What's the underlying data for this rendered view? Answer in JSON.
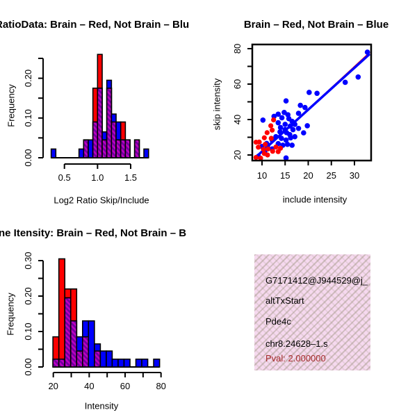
{
  "colors": {
    "red": "#FF0000",
    "blue": "#0000FF",
    "purple_dark": "#6E00A0",
    "purple_light": "#C000C0",
    "black": "#000000",
    "pval_red": "#A52A2A",
    "infobox_pink": "#F6D9EF"
  },
  "chart_data": [
    {
      "type": "histogram",
      "title": "RatioData: Brain – Red, Not Brain – Blu",
      "xlabel": "Log2 Ratio Skip/Include",
      "ylabel": "Frequency",
      "xlim": [
        0.3,
        1.84
      ],
      "ylim": [
        0,
        0.26
      ],
      "x_ticks": [
        {
          "v": 0.5,
          "label": "0.5"
        },
        {
          "v": 1.0,
          "label": "1.0"
        },
        {
          "v": 1.5,
          "label": "1.5"
        }
      ],
      "y_ticks": [
        {
          "v": 0.0,
          "label": "0.00"
        },
        {
          "v": 0.05,
          "label": ""
        },
        {
          "v": 0.1,
          "label": "0.10"
        },
        {
          "v": 0.15,
          "label": ""
        },
        {
          "v": 0.2,
          "label": "0.20"
        },
        {
          "v": 0.25,
          "label": ""
        }
      ],
      "bars": [
        {
          "x0": 0.3,
          "x1": 0.37,
          "red": 0,
          "blue": 0.022
        },
        {
          "x0": 0.72,
          "x1": 0.79,
          "red": 0,
          "blue": 0.022
        },
        {
          "x0": 0.79,
          "x1": 0.86,
          "red": 0.045,
          "blue": 0.045
        },
        {
          "x0": 0.86,
          "x1": 0.93,
          "red": 0,
          "blue": 0.045
        },
        {
          "x0": 0.93,
          "x1": 1.0,
          "red": 0.175,
          "blue": 0.09
        },
        {
          "x0": 1.0,
          "x1": 1.07,
          "red": 0.26,
          "blue": 0.175
        },
        {
          "x0": 1.07,
          "x1": 1.14,
          "red": 0.045,
          "blue": 0.065
        },
        {
          "x0": 1.14,
          "x1": 1.21,
          "red": 0.175,
          "blue": 0.195
        },
        {
          "x0": 1.21,
          "x1": 1.28,
          "red": 0.09,
          "blue": 0.11
        },
        {
          "x0": 1.28,
          "x1": 1.35,
          "red": 0.045,
          "blue": 0.09
        },
        {
          "x0": 1.35,
          "x1": 1.42,
          "red": 0.09,
          "blue": 0.045
        },
        {
          "x0": 1.42,
          "x1": 1.49,
          "red": 0.045,
          "blue": 0.045
        },
        {
          "x0": 1.56,
          "x1": 1.63,
          "red": 0.045,
          "blue": 0.045
        },
        {
          "x0": 1.7,
          "x1": 1.77,
          "red": 0,
          "blue": 0.022
        }
      ]
    },
    {
      "type": "scatter",
      "title": "Brain – Red, Not Brain – Blue",
      "xlabel": "include intensity",
      "ylabel": "skip intensity",
      "xlim": [
        8,
        34
      ],
      "ylim": [
        17,
        82
      ],
      "x_ticks": [
        {
          "v": 10,
          "label": "10"
        },
        {
          "v": 15,
          "label": "15"
        },
        {
          "v": 20,
          "label": "20"
        },
        {
          "v": 25,
          "label": "25"
        },
        {
          "v": 30,
          "label": "30"
        }
      ],
      "y_ticks": [
        {
          "v": 20,
          "label": "20"
        },
        {
          "v": 30,
          "label": ""
        },
        {
          "v": 40,
          "label": "40"
        },
        {
          "v": 50,
          "label": ""
        },
        {
          "v": 60,
          "label": "60"
        },
        {
          "v": 70,
          "label": ""
        },
        {
          "v": 80,
          "label": "80"
        }
      ],
      "blue_line": {
        "x1": 8.4,
        "y1": 18.2,
        "x2": 33.3,
        "y2": 77.0
      },
      "red_line": {
        "x1": 8.4,
        "y1": 17.8,
        "x2": 33.3,
        "y2": 77.8
      },
      "blue_points": [
        [
          32.8,
          78
        ],
        [
          30.8,
          64
        ],
        [
          28,
          61
        ],
        [
          20.2,
          55.3
        ],
        [
          21.9,
          54.8
        ],
        [
          18.3,
          48
        ],
        [
          19.3,
          46.8
        ],
        [
          15.2,
          50.5
        ],
        [
          17.9,
          43.5
        ],
        [
          13.5,
          43
        ],
        [
          14.8,
          44
        ],
        [
          14.3,
          41
        ],
        [
          15.6,
          42.7
        ],
        [
          12.6,
          41.8
        ],
        [
          10.2,
          39.7
        ],
        [
          13.5,
          38.2
        ],
        [
          15,
          37.3
        ],
        [
          16.1,
          36.3
        ],
        [
          17.1,
          37.3
        ],
        [
          19.8,
          36.5
        ],
        [
          15,
          34.3
        ],
        [
          13.9,
          33
        ],
        [
          15.3,
          32.6
        ],
        [
          16.7,
          34.3
        ],
        [
          17.9,
          35
        ],
        [
          19,
          32.5
        ],
        [
          13,
          30.3
        ],
        [
          12.2,
          28.4
        ],
        [
          14.2,
          29.4
        ],
        [
          15.2,
          28.4
        ],
        [
          16.2,
          29.7
        ],
        [
          17.1,
          30.3
        ],
        [
          13.5,
          26.4
        ],
        [
          14.5,
          25.5
        ],
        [
          15.5,
          26
        ],
        [
          16.5,
          25.5
        ],
        [
          11.2,
          24.4
        ],
        [
          12.2,
          23.4
        ],
        [
          10.6,
          22.1
        ],
        [
          9.2,
          19.2
        ],
        [
          15.2,
          18.3
        ],
        [
          16,
          31.5
        ],
        [
          14,
          35.5
        ],
        [
          16.5,
          39
        ],
        [
          15.8,
          40.5
        ],
        [
          11,
          26.5
        ],
        [
          10,
          24.8
        ]
      ],
      "red_points": [
        [
          12.5,
          39.8
        ],
        [
          11.9,
          36.5
        ],
        [
          12.2,
          34
        ],
        [
          11.1,
          32.6
        ],
        [
          10.5,
          29.7
        ],
        [
          12,
          29.4
        ],
        [
          9.4,
          27.3
        ],
        [
          8.7,
          27.2
        ],
        [
          10.7,
          26
        ],
        [
          9.2,
          24.4
        ],
        [
          10.3,
          23.2
        ],
        [
          11.3,
          23.4
        ],
        [
          12.3,
          22.1
        ],
        [
          14,
          23.8
        ],
        [
          13.5,
          21.9
        ],
        [
          10.5,
          20.8
        ],
        [
          11.2,
          20
        ],
        [
          8.7,
          18.6
        ],
        [
          9.7,
          18.2
        ],
        [
          13,
          24.5
        ]
      ]
    },
    {
      "type": "histogram",
      "title": "ne Itensity: Brain – Red, Not Brain – B",
      "xlabel": "Intensity",
      "ylabel": "Frequency",
      "xlim": [
        19.8,
        79.2
      ],
      "ylim": [
        0,
        0.305
      ],
      "x_ticks": [
        {
          "v": 20,
          "label": "20"
        },
        {
          "v": 30,
          "label": ""
        },
        {
          "v": 40,
          "label": "40"
        },
        {
          "v": 50,
          "label": ""
        },
        {
          "v": 60,
          "label": "60"
        },
        {
          "v": 70,
          "label": ""
        },
        {
          "v": 80,
          "label": "80"
        }
      ],
      "y_ticks": [
        {
          "v": 0.0,
          "label": "0.00"
        },
        {
          "v": 0.05,
          "label": ""
        },
        {
          "v": 0.1,
          "label": "0.10"
        },
        {
          "v": 0.15,
          "label": ""
        },
        {
          "v": 0.2,
          "label": "0.20"
        },
        {
          "v": 0.25,
          "label": ""
        },
        {
          "v": 0.3,
          "label": "0.30"
        }
      ],
      "bars": [
        {
          "x0": 19.8,
          "x1": 23.1,
          "red": 0.085,
          "blue": 0.022
        },
        {
          "x0": 23.1,
          "x1": 26.4,
          "red": 0.305,
          "blue": 0.022
        },
        {
          "x0": 26.4,
          "x1": 29.7,
          "red": 0.22,
          "blue": 0.195
        },
        {
          "x0": 29.7,
          "x1": 33.0,
          "red": 0.22,
          "blue": 0.13
        },
        {
          "x0": 33.0,
          "x1": 36.3,
          "red": 0.045,
          "blue": 0.085
        },
        {
          "x0": 36.3,
          "x1": 39.6,
          "red": 0.085,
          "blue": 0.13
        },
        {
          "x0": 39.6,
          "x1": 42.9,
          "red": 0,
          "blue": 0.13
        },
        {
          "x0": 42.9,
          "x1": 46.2,
          "red": 0.045,
          "blue": 0.065
        },
        {
          "x0": 46.2,
          "x1": 49.5,
          "red": 0,
          "blue": 0.045
        },
        {
          "x0": 49.5,
          "x1": 52.8,
          "red": 0,
          "blue": 0.045
        },
        {
          "x0": 52.8,
          "x1": 56.1,
          "red": 0,
          "blue": 0.022
        },
        {
          "x0": 56.1,
          "x1": 59.4,
          "red": 0,
          "blue": 0.022
        },
        {
          "x0": 59.4,
          "x1": 62.7,
          "red": 0,
          "blue": 0.022
        },
        {
          "x0": 66.0,
          "x1": 69.3,
          "red": 0,
          "blue": 0.022
        },
        {
          "x0": 69.3,
          "x1": 72.6,
          "red": 0,
          "blue": 0.022
        },
        {
          "x0": 75.9,
          "x1": 79.2,
          "red": 0,
          "blue": 0.022
        }
      ]
    }
  ],
  "info_box": {
    "lines": [
      "G7171412@J944529@j_",
      "altTxStart",
      "Pde4c",
      "chr8.24628–1.s"
    ],
    "pval": "Pval: 2.000000"
  }
}
